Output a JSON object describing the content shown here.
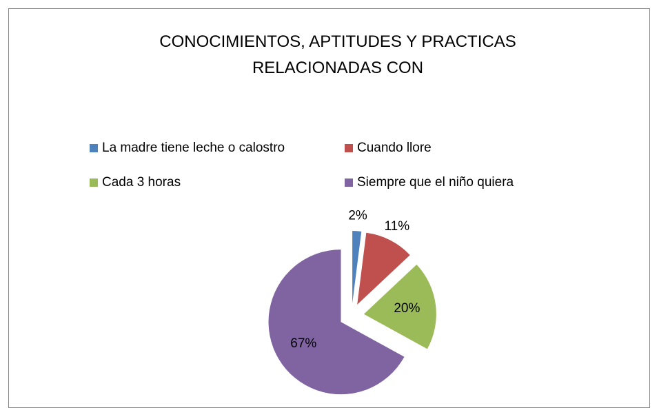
{
  "chart_data": {
    "type": "pie",
    "title": "CONOCIMIENTOS, APTITUDES Y PRACTICAS RELACIONADAS CON",
    "categories": [
      "La madre tiene leche o calostro",
      "Cuando llore",
      "Cada 3 horas",
      "Siempre que el niño quiera"
    ],
    "values": [
      2,
      11,
      20,
      67
    ],
    "value_labels": [
      "2%",
      "11%",
      "20%",
      "67%"
    ],
    "colors": [
      "#4f81bd",
      "#c0504d",
      "#9bbb59",
      "#8064a2"
    ],
    "legend": "top"
  }
}
